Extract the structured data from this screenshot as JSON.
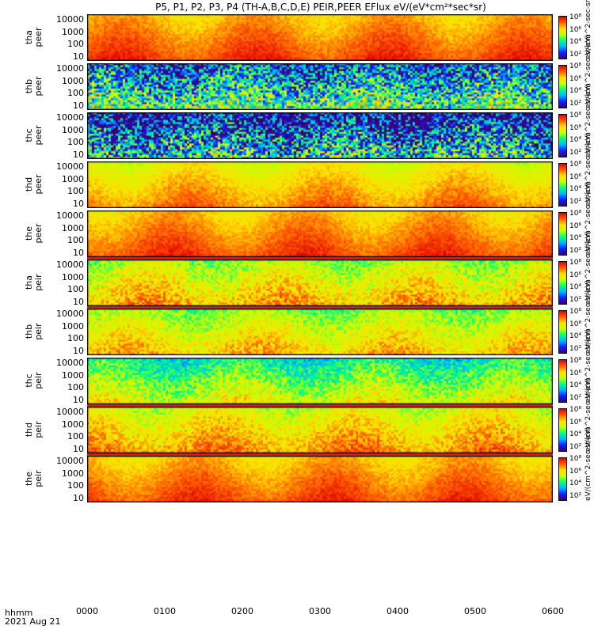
{
  "chart_data": {
    "type": "heatmap",
    "title": "P5, P1, P2, P3, P4 (TH-A,B,C,D,E) PEIR,PEER EFlux eV/(eV*cm²*sec*sr)",
    "x_ticks": [
      "0000",
      "0100",
      "0200",
      "0300",
      "0400",
      "0500",
      "0600"
    ],
    "x_label_lines": [
      "hhmm",
      "2021 Aug 21"
    ],
    "y_ticks": [
      "10000",
      "1000",
      "100",
      "10"
    ],
    "ylim": [
      10,
      10000
    ],
    "y_scale": "log",
    "colorbar_ticks": [
      "10⁸",
      "10⁶",
      "10⁴",
      "10²"
    ],
    "colorbar_label": "[eV/(cm²-s-sr-eV)]",
    "panels": [
      {
        "probe": "tha",
        "species": "peer",
        "label": "tha\npeer",
        "cbar_label": "eV/(cm^2-sec-sr-eV)",
        "fill_level": 0.86,
        "texture": 0.05,
        "flag_after": false
      },
      {
        "probe": "thb",
        "species": "peer",
        "label": "thb\npeer",
        "cbar_label": "eV/(cm^2-sec-sr-eV)",
        "fill_level": 0.45,
        "texture": 0.3,
        "flag_after": false
      },
      {
        "probe": "thc",
        "species": "peer",
        "label": "thc\npeer",
        "cbar_label": "eV/(cm^2-sec-sr-eV)",
        "fill_level": 0.35,
        "texture": 0.35,
        "flag_after": false
      },
      {
        "probe": "thd",
        "species": "peer",
        "label": "thd\npeer",
        "cbar_label": "eV/(cm^2-sec-sr-eV)",
        "fill_level": 0.78,
        "texture": 0.06,
        "flag_after": false
      },
      {
        "probe": "the",
        "species": "peer",
        "label": "the\npeer",
        "cbar_label": "eV/(cm^2-sec-sr-eV)",
        "fill_level": 0.85,
        "texture": 0.05,
        "flag_after": true
      },
      {
        "probe": "tha",
        "species": "peir",
        "label": "tha\npeir",
        "cbar_label": "eV/(cm^2-sec-sr-eV)",
        "fill_level": 0.72,
        "texture": 0.12,
        "flag_after": true
      },
      {
        "probe": "thb",
        "species": "peir",
        "label": "thb\npeir",
        "cbar_label": "eV/(cm^2-sec-sr-eV)",
        "fill_level": 0.7,
        "texture": 0.1,
        "flag_after": false
      },
      {
        "probe": "thc",
        "species": "peir",
        "label": "thc\npeir",
        "cbar_label": "eV/(cm^2-sec-sr-eV)",
        "fill_level": 0.6,
        "texture": 0.12,
        "flag_after": true
      },
      {
        "probe": "thd",
        "species": "peir",
        "label": "thd\npeir",
        "cbar_label": "eV/(cm^2-sec-sr-eV)",
        "fill_level": 0.76,
        "texture": 0.1,
        "flag_after": true
      },
      {
        "probe": "the",
        "species": "peir",
        "label": "the\npeir",
        "cbar_label": "eV/(cm^2-sec-sr-eV)",
        "fill_level": 0.85,
        "texture": 0.05,
        "flag_after": false
      }
    ],
    "colormap": [
      "#3a0070",
      "#1020ff",
      "#00b4ff",
      "#00ff80",
      "#c8ff00",
      "#ffe000",
      "#ff6000",
      "#e00000"
    ]
  }
}
